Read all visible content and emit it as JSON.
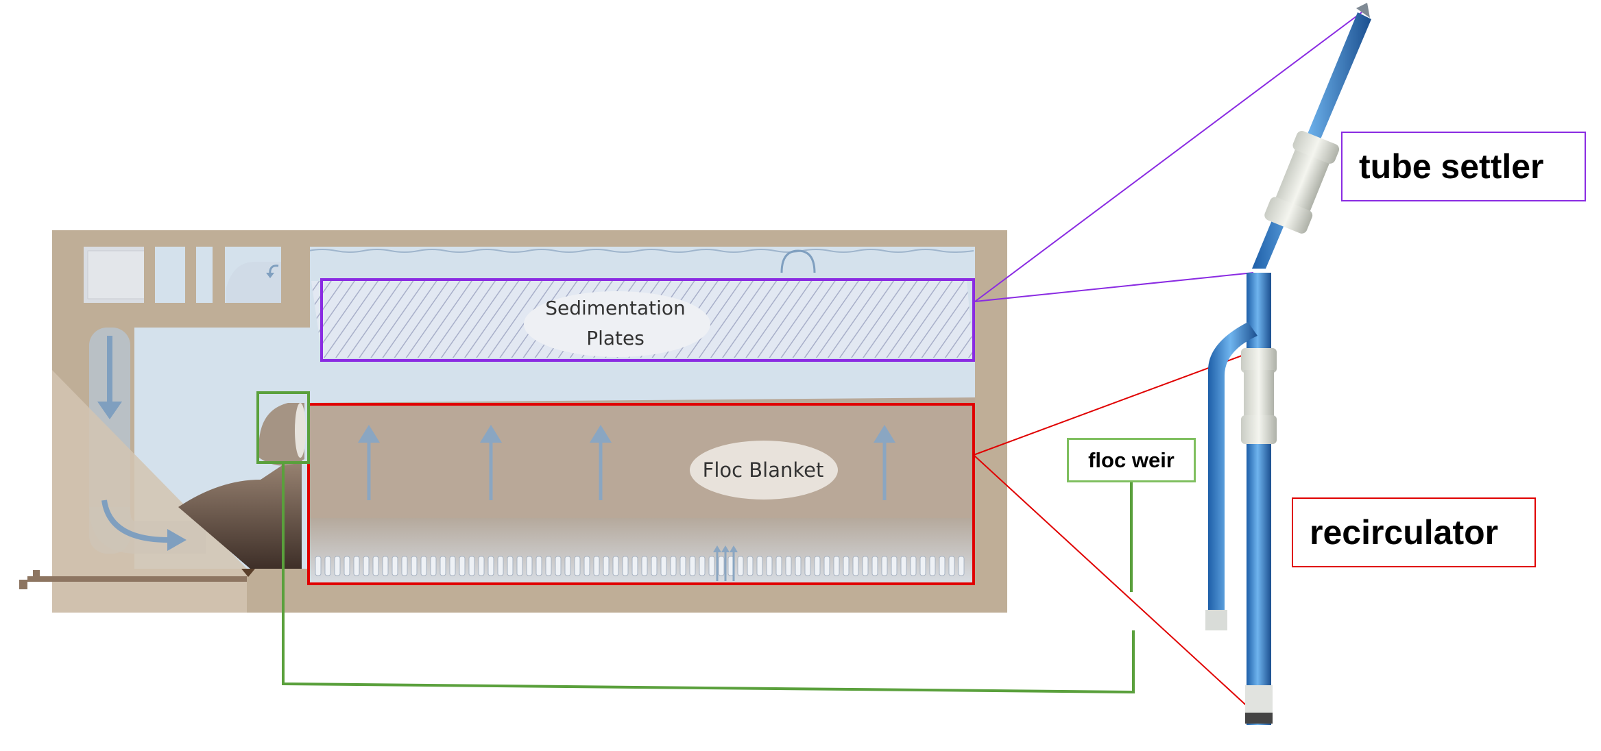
{
  "labels": {
    "sedimentation_plates": "Sedimentation\nPlates",
    "floc_blanket": "Floc Blanket",
    "tube_settler": "tube settler",
    "recirculator": "recirculator",
    "floc_weir": "floc weir"
  },
  "colors": {
    "tank_wall": "#bfae97",
    "water": "#d4e1ec",
    "floc_blanket": "#b9a898",
    "plates_box": "#8a2be2",
    "blanket_box": "#e00000",
    "weir_box": "#7fbf5f",
    "pipe_blue": "#3f8fd6"
  },
  "icons": {
    "arrow": "up-arrow-icon",
    "faucet": "faucet-icon"
  }
}
